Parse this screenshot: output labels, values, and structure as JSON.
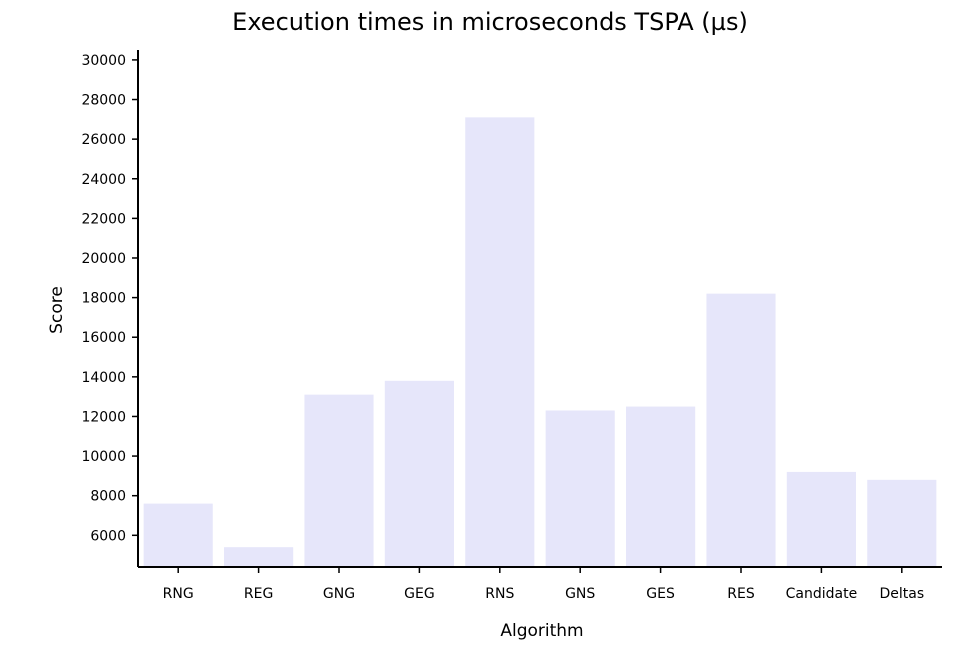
{
  "chart_data": {
    "type": "bar",
    "title": "Execution times in microseconds TSPA (µs)",
    "xlabel": "Algorithm",
    "ylabel": "Score",
    "categories": [
      "RNG",
      "REG",
      "GNG",
      "GEG",
      "RNS",
      "GNS",
      "GES",
      "RES",
      "Candidate",
      "Deltas"
    ],
    "values": [
      7600,
      5400,
      13100,
      13800,
      27100,
      12300,
      12500,
      18200,
      9200,
      8800
    ],
    "ylim": [
      4400,
      30500
    ],
    "yticks": [
      6000,
      8000,
      10000,
      12000,
      14000,
      16000,
      18000,
      20000,
      22000,
      24000,
      26000,
      28000,
      30000
    ],
    "grid": false,
    "bar_color": "#e6e6fa"
  }
}
